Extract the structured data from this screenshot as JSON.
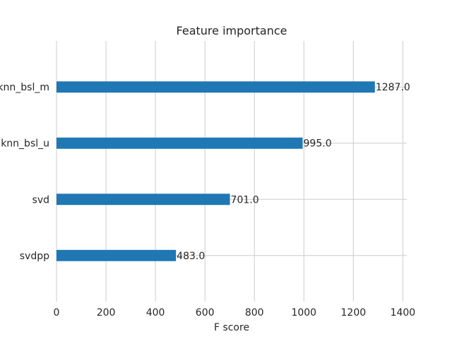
{
  "chart_data": {
    "type": "bar",
    "orientation": "horizontal",
    "title": "Feature importance",
    "xlabel": "F score",
    "ylabel": "",
    "categories": [
      "svdpp",
      "svd",
      "knn_bsl_u",
      "knn_bsl_m"
    ],
    "values": [
      483,
      701,
      995,
      1287
    ],
    "value_labels": [
      "483.0",
      "701.0",
      "995.0",
      "1287.0"
    ],
    "xlim": [
      0,
      1416
    ],
    "xticks": [
      0,
      200,
      400,
      600,
      800,
      1000,
      1200,
      1400
    ],
    "xtick_labels": [
      "0",
      "200",
      "400",
      "600",
      "800",
      "1000",
      "1200",
      "1400"
    ],
    "grid": true,
    "bar_color": "#1f77b4",
    "grid_color": "#cccccc",
    "text_color": "#262626"
  }
}
